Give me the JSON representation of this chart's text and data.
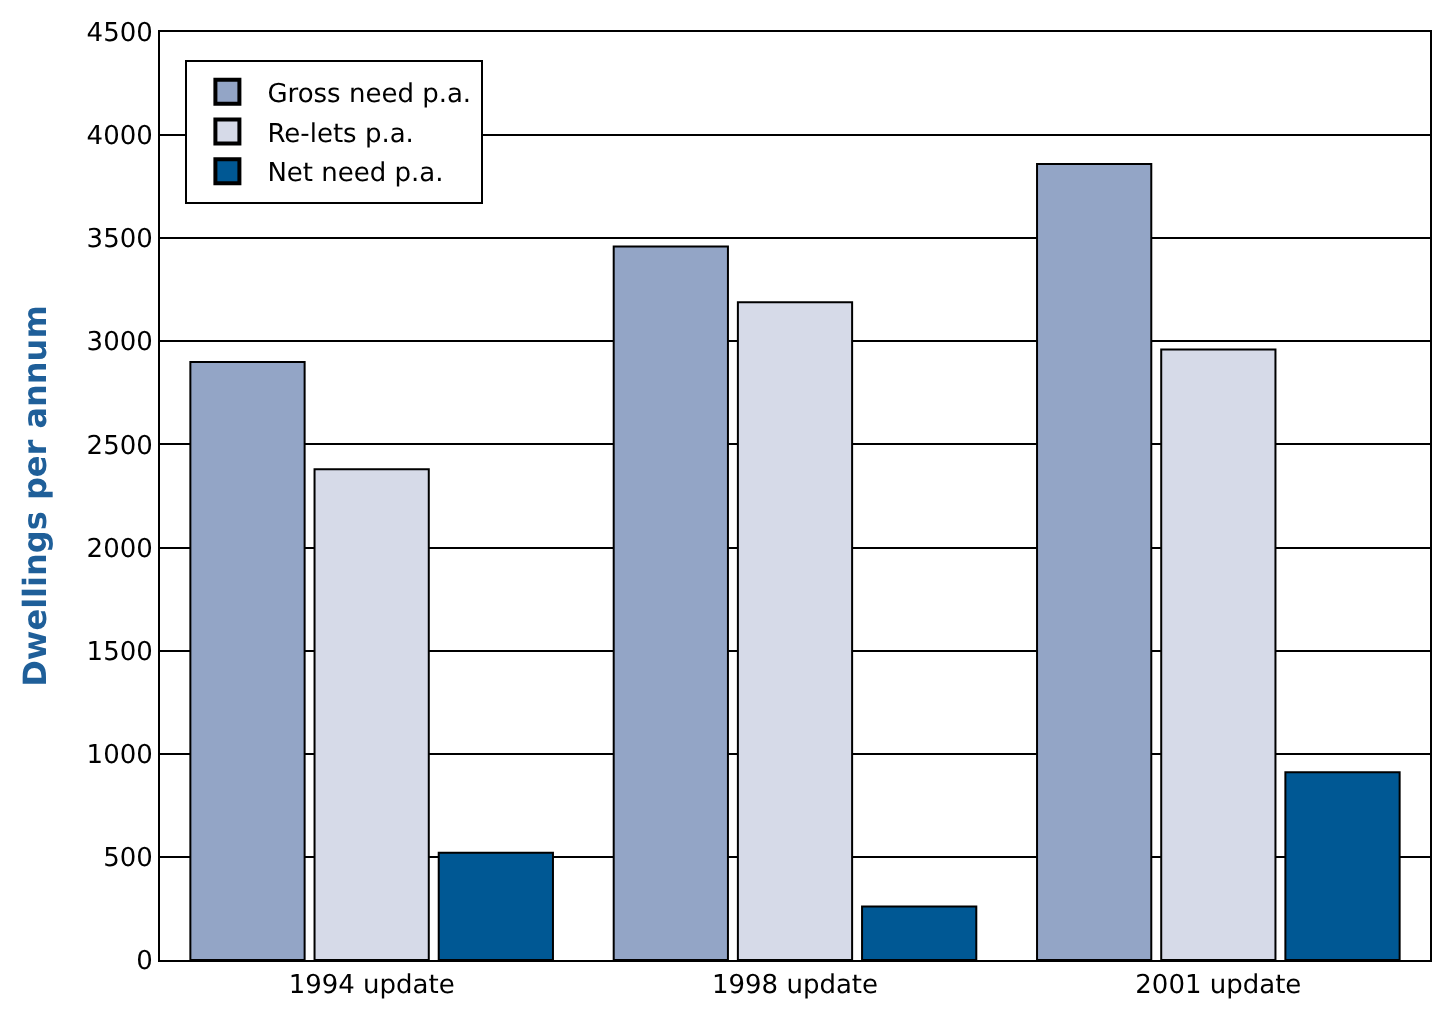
{
  "chart_data": {
    "type": "bar",
    "ylabel": "Dwellings per annum",
    "categories": [
      "1994 update",
      "1998 update",
      "2001 update"
    ],
    "series": [
      {
        "name": "Gross need p.a.",
        "color": "#93a5c6",
        "values": [
          2900,
          3460,
          3860
        ]
      },
      {
        "name": "Re-lets p.a.",
        "color": "#d6dae8",
        "values": [
          2380,
          3190,
          2960
        ]
      },
      {
        "name": "Net need p.a.",
        "color": "#005894",
        "values": [
          520,
          260,
          910
        ]
      }
    ],
    "ylim": [
      0,
      4500
    ],
    "yticks": [
      0,
      500,
      1000,
      1500,
      2000,
      2500,
      3000,
      3500,
      4000,
      4500
    ],
    "grid": "y",
    "legend": "top left"
  }
}
